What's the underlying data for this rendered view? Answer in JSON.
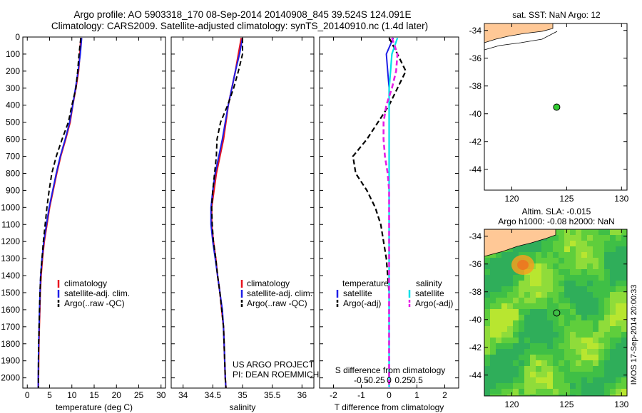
{
  "header": {
    "line1": "Argo profile: AO 5903318_170 08-Sep-2014 20140908_845 39.524S 124.091E",
    "line2": "Climatology: CARS2009. Satellite-adjusted climatology: synTS_20140910.nc (1.4d later)"
  },
  "colors": {
    "clim": "#e8141e",
    "sat": "#1e1ee6",
    "argo": "#000000",
    "sal_sat": "#00e0e8",
    "sal_argo": "#e61ee6",
    "land": "#ffc896",
    "marker": "#33cc33"
  },
  "project": {
    "line1": "US ARGO PROJECT",
    "line2": "PI: DEAN ROEMMICH"
  },
  "watermark": "IMOS 17-Sep-2014 20:00:33",
  "legend_ts": {
    "clim": "climatology",
    "sat": "satellite-adj. clim.",
    "argo": "Argo(..raw -QC)"
  },
  "legend_ts2": {
    "clim": "climatology",
    "sat": "satellite-adj. clim.",
    "argo": "Argo(..raw -QC)"
  },
  "legend_diff": {
    "t_head": "temperature",
    "s_head": "salinity",
    "t_sat": "satellite",
    "t_argo": "Argo(-adj)",
    "s_sat": "satellite",
    "s_argo": "Argo(-adj)"
  },
  "map_top": {
    "title": "sat. SST: NaN Argo: 12",
    "yticks": [
      "-34",
      "-36",
      "-38",
      "-40",
      "-42",
      "-44"
    ],
    "xticks": [
      "120",
      "125",
      "130"
    ]
  },
  "map_bottom": {
    "title1": "Altim. SLA: -0.015",
    "title2": "Argo h1000: -0.08 h2000: NaN",
    "yticks": [
      "-34",
      "-36",
      "-38",
      "-40",
      "-42",
      "-44"
    ],
    "xticks": [
      "120",
      "125",
      "130"
    ]
  },
  "chart_data": [
    {
      "type": "line",
      "panel": "temperature",
      "xlabel": "temperature (deg C)",
      "ylim": [
        2060,
        0
      ],
      "xlim": [
        -1,
        31
      ],
      "xticks": [
        "0",
        "5",
        "10",
        "15",
        "20",
        "25",
        "30"
      ],
      "yticks": [
        "0",
        "100",
        "200",
        "300",
        "400",
        "500",
        "600",
        "700",
        "800",
        "900",
        "1000",
        "1100",
        "1200",
        "1300",
        "1400",
        "1500",
        "1600",
        "1700",
        "1800",
        "1900",
        "2000"
      ],
      "depth": [
        5,
        100,
        200,
        300,
        400,
        500,
        600,
        700,
        800,
        900,
        1000,
        1100,
        1200,
        1300,
        1400,
        1500,
        1600,
        1700,
        1800,
        1900,
        2000,
        2060
      ],
      "series": [
        {
          "name": "climatology",
          "values": [
            12.0,
            11.8,
            11.5,
            10.9,
            10.2,
            9.6,
            8.6,
            7.5,
            6.6,
            5.8,
            5.0,
            4.4,
            3.8,
            3.4,
            3.1,
            2.9,
            2.8,
            2.7,
            2.6,
            2.55,
            2.5,
            2.5
          ]
        },
        {
          "name": "satellite-adj. clim.",
          "values": [
            12.2,
            11.9,
            11.4,
            10.8,
            10.2,
            9.5,
            8.5,
            7.4,
            6.5,
            5.7,
            4.9,
            4.3,
            3.7,
            3.3,
            3.0,
            2.85,
            2.75,
            2.65,
            2.55,
            2.5,
            2.45,
            2.45
          ]
        },
        {
          "name": "Argo(..raw -QC)",
          "values": [
            12.0,
            11.6,
            11.3,
            10.9,
            10.0,
            9.2,
            7.8,
            6.5,
            5.5,
            4.9,
            4.4,
            4.0,
            3.6,
            3.3,
            3.0,
            2.85,
            2.75,
            2.65,
            2.55,
            2.5,
            2.5,
            2.5
          ]
        }
      ]
    },
    {
      "type": "line",
      "panel": "salinity",
      "xlabel": "salinity",
      "ylim": [
        2060,
        0
      ],
      "xlim": [
        33.8,
        36.2
      ],
      "xticks": [
        "34",
        "34.5",
        "35",
        "35.5",
        "36"
      ],
      "depth": [
        5,
        100,
        200,
        300,
        400,
        500,
        600,
        700,
        800,
        900,
        1000,
        1100,
        1200,
        1300,
        1400,
        1500,
        1600,
        1700,
        1800,
        1900,
        2000,
        2060
      ],
      "series": [
        {
          "name": "climatology",
          "values": [
            34.98,
            34.93,
            34.88,
            34.82,
            34.76,
            34.72,
            34.68,
            34.62,
            34.56,
            34.52,
            34.48,
            34.48,
            34.51,
            34.55,
            34.58,
            34.62,
            34.65,
            34.68,
            34.69,
            34.7,
            34.71,
            34.72
          ]
        },
        {
          "name": "satellite-adj. clim.",
          "values": [
            35.0,
            34.95,
            34.88,
            34.82,
            34.76,
            34.71,
            34.66,
            34.6,
            34.54,
            34.5,
            34.47,
            34.47,
            34.5,
            34.54,
            34.58,
            34.62,
            34.66,
            34.68,
            34.69,
            34.7,
            34.71,
            34.72
          ]
        },
        {
          "name": "Argo(..raw -QC)",
          "values": [
            35.0,
            35.0,
            34.93,
            34.85,
            34.75,
            34.63,
            34.57,
            34.56,
            34.53,
            34.5,
            34.48,
            34.49,
            34.51,
            34.55,
            34.58,
            34.62,
            34.65,
            34.68,
            34.69,
            34.7,
            34.71,
            34.72
          ]
        }
      ]
    },
    {
      "type": "line",
      "panel": "difference",
      "xlabel": "T difference from climatology",
      "xlabel_top": "S difference from climatology",
      "ylim": [
        2060,
        0
      ],
      "xlim": [
        -2.5,
        2.5
      ],
      "xticks": [
        "-2",
        "-1",
        "0",
        "1",
        "2"
      ],
      "xticks_top": [
        "-0.5",
        "-0.25",
        "0",
        "0.25",
        "0.5"
      ],
      "depth": [
        5,
        100,
        200,
        300,
        400,
        500,
        600,
        700,
        800,
        900,
        1000,
        1100,
        1200,
        1300,
        1400,
        1500,
        1600,
        1700,
        1800,
        1900,
        2000,
        2060
      ],
      "series": [
        {
          "name": "temperature satellite",
          "values": [
            0.15,
            -0.1,
            -0.05,
            0.0,
            0.0,
            0.0,
            0.0,
            0.0,
            0.0,
            0.0,
            0.0,
            0.0,
            0.0,
            0.0,
            0.0,
            0.0,
            0.0,
            0.0,
            0.0,
            0.0,
            0.0,
            0.0
          ]
        },
        {
          "name": "temperature Argo(-adj)",
          "values": [
            0.0,
            0.3,
            0.6,
            0.3,
            0.0,
            -0.4,
            -0.8,
            -1.3,
            -1.2,
            -0.8,
            -0.5,
            -0.3,
            -0.2,
            -0.1,
            -0.05,
            0.0,
            0.0,
            0.0,
            0.0,
            0.0,
            0.0,
            0.0
          ]
        },
        {
          "name": "salinity satellite",
          "values": [
            0.3,
            0.1,
            0.05,
            0.0,
            0.0,
            0.0,
            0.0,
            0.0,
            0.0,
            0.0,
            0.0,
            0.0,
            0.0,
            0.0,
            0.0,
            0.0,
            0.0,
            0.0,
            0.0,
            0.0,
            0.0,
            0.0
          ]
        },
        {
          "name": "salinity Argo(-adj)",
          "values": [
            0.1,
            0.3,
            0.25,
            0.1,
            -0.1,
            -0.2,
            -0.2,
            -0.15,
            -0.05,
            0.0,
            0.0,
            0.0,
            0.0,
            0.0,
            0.0,
            0.0,
            0.0,
            0.0,
            0.0,
            0.0,
            0.0,
            0.0
          ]
        }
      ]
    }
  ],
  "marker": {
    "lon": 124.091,
    "lat": -39.524
  }
}
